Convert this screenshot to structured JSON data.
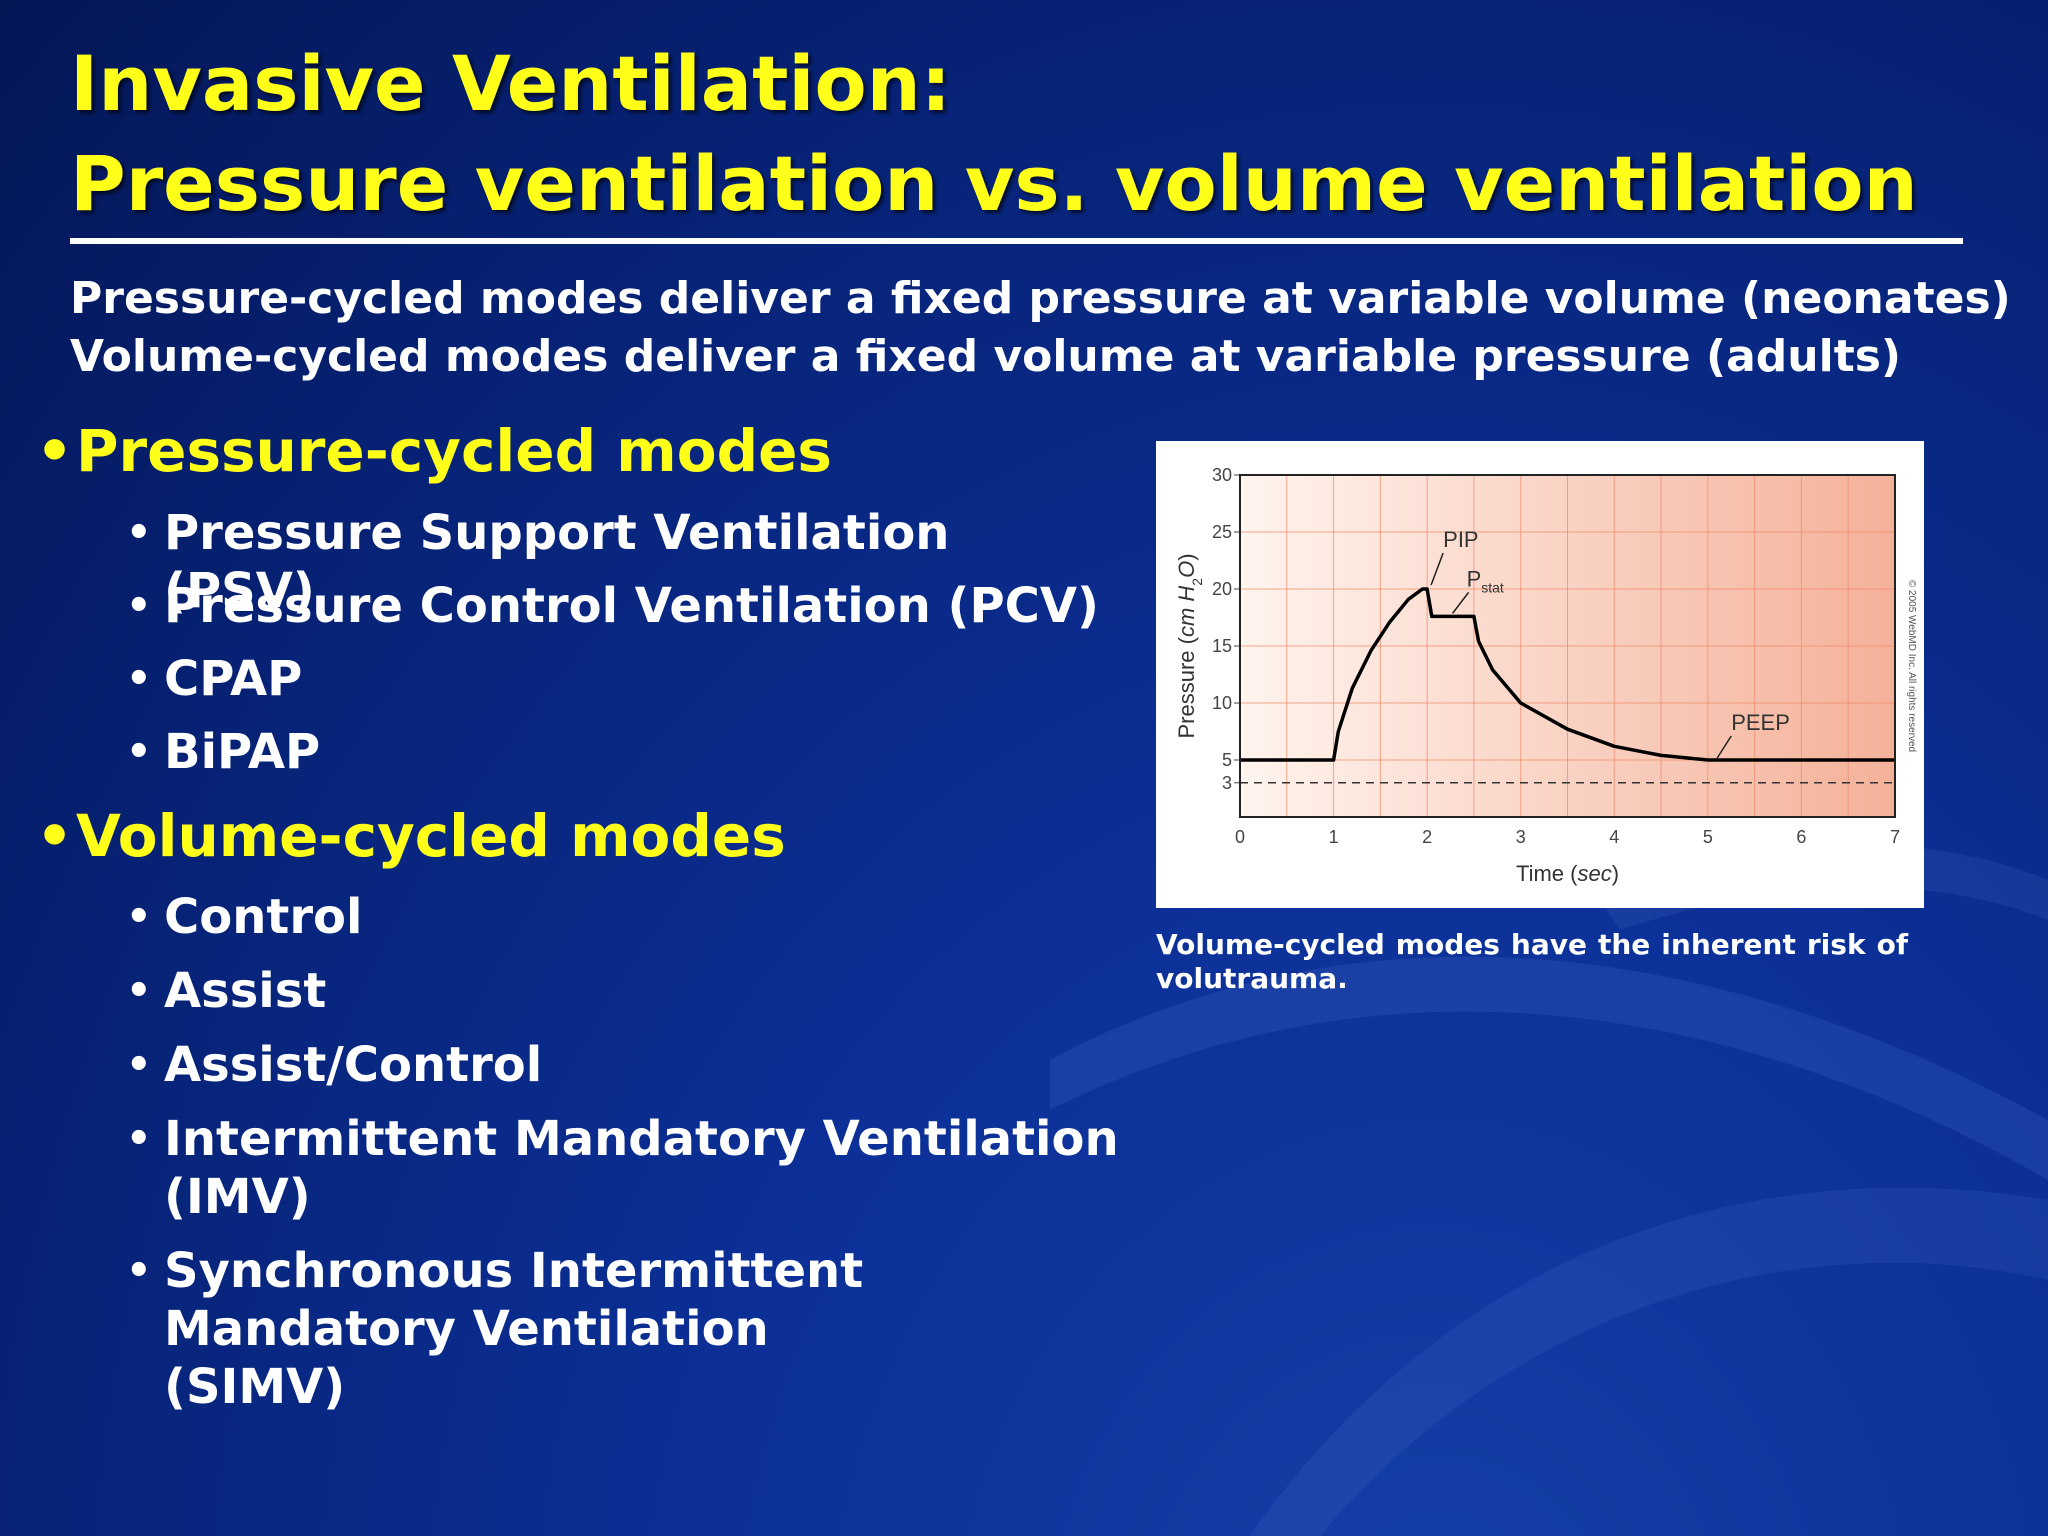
{
  "title": {
    "line1": "Invasive Ventilation:",
    "line2": "Pressure ventilation vs. volume ventilation"
  },
  "intro": {
    "line1": "Pressure-cycled modes deliver a fixed pressure at variable volume (neonates)",
    "line2": "Volume-cycled modes deliver a fixed volume at variable pressure (adults)"
  },
  "bullet_glyph": "•",
  "pressure_section": {
    "heading": "Pressure-cycled modes",
    "items": [
      "Pressure Support Ventilation (PSV)",
      "Pressure Control Ventilation (PCV)",
      "CPAP",
      "BiPAP"
    ]
  },
  "volume_section": {
    "heading": "Volume-cycled modes",
    "items": [
      "Control",
      "Assist",
      "Assist/Control",
      "Intermittent Mandatory Ventilation (IMV)",
      "Synchronous Intermittent Mandatory Ventilation (SIMV)"
    ]
  },
  "chart_data": {
    "type": "line",
    "xlabel_main": "Time (",
    "xlabel_unit": "sec",
    "xlabel_close": ")",
    "ylabel_main": "Pressure (",
    "ylabel_unit": "cm H",
    "ylabel_sub": "2",
    "ylabel_unit2": "O",
    "ylabel_close": ")",
    "xlim": [
      0,
      7
    ],
    "ylim": [
      0,
      30
    ],
    "x_ticks": [
      0,
      1,
      2,
      3,
      4,
      5,
      6,
      7
    ],
    "x_tick_labels": [
      "0",
      "1",
      "2",
      "3",
      "4",
      "5",
      "6",
      "7"
    ],
    "y_ticks": [
      3,
      5,
      10,
      15,
      20,
      25,
      30
    ],
    "y_tick_labels": [
      "3",
      "5",
      "10",
      "15",
      "20",
      "25",
      "30"
    ],
    "grid": true,
    "series": [
      {
        "x": [
          0,
          1,
          1.05,
          1.2,
          1.4,
          1.6,
          1.8,
          1.95,
          2.0,
          2.05,
          2.5,
          2.55,
          2.7,
          3.0,
          3.5,
          4.0,
          4.5,
          5.0,
          6.0,
          7.0
        ],
        "values": [
          5,
          5,
          7.5,
          11.3,
          14.6,
          17.1,
          19.1,
          20.0,
          20.0,
          17.6,
          17.6,
          15.4,
          12.9,
          10.0,
          7.7,
          6.2,
          5.4,
          5.0,
          5.0,
          5.0
        ]
      }
    ],
    "reference_line": {
      "y": 3,
      "style": "dashed"
    },
    "annotations": [
      {
        "text": "PIP",
        "x": 2.0,
        "y": 20
      },
      {
        "text": "P",
        "sub": "stat",
        "x": 2.4,
        "y": 17.6
      },
      {
        "text": "PEEP",
        "x": 5.1,
        "y": 5
      }
    ],
    "copyright": "© 2005 WebMD Inc. All rights reserved",
    "background_gradient": [
      "#fff4ee",
      "#f4b199"
    ],
    "grid_color": "#f08a6a",
    "line_color": "#000000"
  },
  "caption": "Volume-cycled modes have the inherent risk of volutrauma.",
  "colors": {
    "background": "#0b2f96",
    "heading_yellow": "#ffff1a",
    "text_white": "#ffffff"
  }
}
